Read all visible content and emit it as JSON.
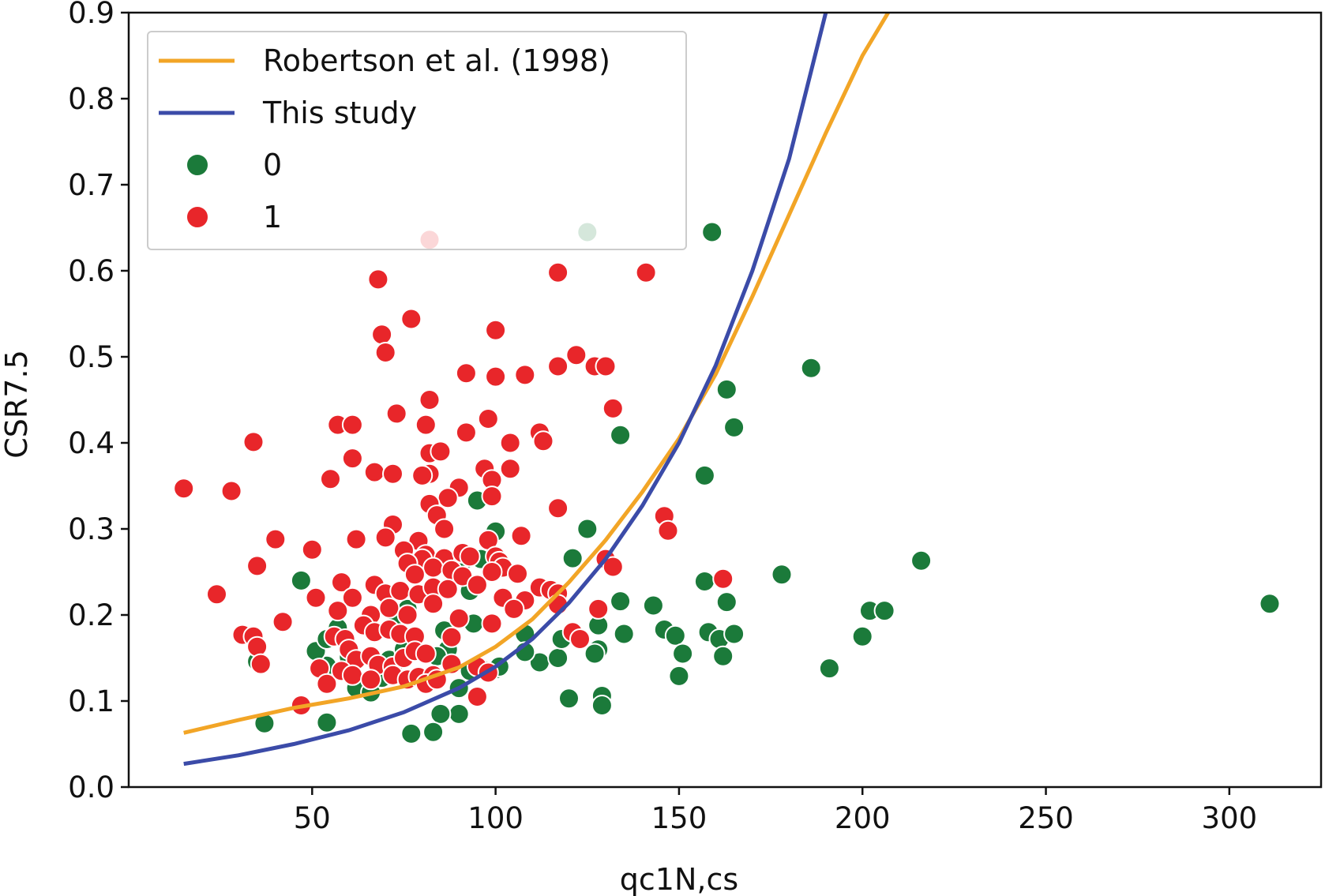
{
  "chart_data": {
    "type": "scatter",
    "title": "",
    "xlabel": "qc1N,cs",
    "ylabel": "CSR7.5",
    "xlim": [
      0,
      325
    ],
    "ylim": [
      0,
      0.9
    ],
    "xticks": [
      50,
      100,
      150,
      200,
      250,
      300
    ],
    "yticks": [
      0.0,
      0.1,
      0.2,
      0.3,
      0.4,
      0.5,
      0.6,
      0.7,
      0.8,
      0.9
    ],
    "grid": false,
    "legend_position": "top-left",
    "curves": [
      {
        "name": "Robertson et al. (1998)",
        "color": "#F2A526",
        "x": [
          15,
          30,
          45,
          60,
          75,
          90,
          100,
          110,
          120,
          130,
          140,
          150,
          160,
          170,
          180,
          190,
          200,
          207
        ],
        "y": [
          0.063,
          0.078,
          0.092,
          0.103,
          0.117,
          0.139,
          0.163,
          0.195,
          0.238,
          0.287,
          0.343,
          0.405,
          0.48,
          0.57,
          0.665,
          0.76,
          0.85,
          0.9
        ]
      },
      {
        "name": "This study",
        "color": "#3B4BA8",
        "x": [
          15,
          30,
          45,
          60,
          75,
          90,
          100,
          110,
          120,
          130,
          140,
          150,
          160,
          170,
          180,
          190
        ],
        "y": [
          0.027,
          0.037,
          0.05,
          0.066,
          0.087,
          0.115,
          0.14,
          0.172,
          0.214,
          0.265,
          0.327,
          0.4,
          0.49,
          0.6,
          0.73,
          0.9
        ]
      }
    ],
    "series": [
      {
        "name": "0",
        "color": "#1B7A3A",
        "points": [
          [
            159,
            0.645
          ],
          [
            125,
            0.645
          ],
          [
            186,
            0.487
          ],
          [
            163,
            0.462
          ],
          [
            165,
            0.418
          ],
          [
            134,
            0.409
          ],
          [
            157,
            0.362
          ],
          [
            216,
            0.263
          ],
          [
            178,
            0.247
          ],
          [
            125,
            0.3
          ],
          [
            121,
            0.266
          ],
          [
            157,
            0.239
          ],
          [
            163,
            0.215
          ],
          [
            134,
            0.216
          ],
          [
            143,
            0.211
          ],
          [
            311,
            0.213
          ],
          [
            202,
            0.205
          ],
          [
            206,
            0.205
          ],
          [
            200,
            0.175
          ],
          [
            146,
            0.183
          ],
          [
            149,
            0.176
          ],
          [
            158,
            0.18
          ],
          [
            161,
            0.172
          ],
          [
            165,
            0.178
          ],
          [
            135,
            0.178
          ],
          [
            128,
            0.188
          ],
          [
            128,
            0.16
          ],
          [
            127,
            0.155
          ],
          [
            151,
            0.155
          ],
          [
            162,
            0.152
          ],
          [
            191,
            0.138
          ],
          [
            150,
            0.129
          ],
          [
            120,
            0.103
          ],
          [
            129,
            0.106
          ],
          [
            129,
            0.095
          ],
          [
            112,
            0.145
          ],
          [
            117,
            0.15
          ],
          [
            118,
            0.172
          ],
          [
            108,
            0.178
          ],
          [
            108,
            0.157
          ],
          [
            100,
            0.137
          ],
          [
            101,
            0.14
          ],
          [
            96,
            0.138
          ],
          [
            93,
            0.135
          ],
          [
            90,
            0.115
          ],
          [
            87,
            0.16
          ],
          [
            86,
            0.182
          ],
          [
            84,
            0.152
          ],
          [
            90,
            0.085
          ],
          [
            85,
            0.085
          ],
          [
            83,
            0.064
          ],
          [
            77,
            0.062
          ],
          [
            47,
            0.24
          ],
          [
            35,
            0.146
          ],
          [
            37,
            0.074
          ],
          [
            54,
            0.075
          ],
          [
            54,
            0.141
          ],
          [
            51,
            0.158
          ],
          [
            54,
            0.172
          ],
          [
            57,
            0.185
          ],
          [
            60,
            0.151
          ],
          [
            62,
            0.115
          ],
          [
            66,
            0.11
          ],
          [
            69,
            0.127
          ],
          [
            71,
            0.148
          ],
          [
            73,
            0.19
          ],
          [
            75,
            0.16
          ],
          [
            95,
            0.333
          ],
          [
            100,
            0.297
          ],
          [
            96,
            0.265
          ],
          [
            92,
            0.265
          ],
          [
            93,
            0.228
          ],
          [
            76,
            0.207
          ],
          [
            94,
            0.19
          ]
        ]
      },
      {
        "name": "1",
        "color": "#E8262A",
        "points": [
          [
            82,
            0.636
          ],
          [
            68,
            0.59
          ],
          [
            117,
            0.598
          ],
          [
            141,
            0.598
          ],
          [
            77,
            0.544
          ],
          [
            100,
            0.531
          ],
          [
            69,
            0.526
          ],
          [
            70,
            0.505
          ],
          [
            122,
            0.502
          ],
          [
            92,
            0.481
          ],
          [
            100,
            0.477
          ],
          [
            108,
            0.479
          ],
          [
            117,
            0.489
          ],
          [
            127,
            0.489
          ],
          [
            130,
            0.489
          ],
          [
            82,
            0.45
          ],
          [
            132,
            0.44
          ],
          [
            73,
            0.434
          ],
          [
            98,
            0.428
          ],
          [
            57,
            0.421
          ],
          [
            61,
            0.421
          ],
          [
            81,
            0.421
          ],
          [
            92,
            0.412
          ],
          [
            112,
            0.412
          ],
          [
            113,
            0.402
          ],
          [
            104,
            0.4
          ],
          [
            34,
            0.401
          ],
          [
            82,
            0.388
          ],
          [
            85,
            0.39
          ],
          [
            61,
            0.382
          ],
          [
            67,
            0.366
          ],
          [
            72,
            0.364
          ],
          [
            82,
            0.364
          ],
          [
            80,
            0.362
          ],
          [
            97,
            0.37
          ],
          [
            104,
            0.37
          ],
          [
            99,
            0.357
          ],
          [
            55,
            0.358
          ],
          [
            15,
            0.347
          ],
          [
            28,
            0.344
          ],
          [
            90,
            0.348
          ],
          [
            99,
            0.338
          ],
          [
            87,
            0.336
          ],
          [
            82,
            0.329
          ],
          [
            84,
            0.316
          ],
          [
            117,
            0.324
          ],
          [
            86,
            0.3
          ],
          [
            146,
            0.315
          ],
          [
            147,
            0.298
          ],
          [
            107,
            0.292
          ],
          [
            72,
            0.305
          ],
          [
            70,
            0.29
          ],
          [
            79,
            0.286
          ],
          [
            40,
            0.288
          ],
          [
            62,
            0.288
          ],
          [
            50,
            0.276
          ],
          [
            35,
            0.257
          ],
          [
            98,
            0.287
          ],
          [
            75,
            0.275
          ],
          [
            81,
            0.27
          ],
          [
            86,
            0.266
          ],
          [
            91,
            0.272
          ],
          [
            93,
            0.268
          ],
          [
            100,
            0.268
          ],
          [
            101,
            0.262
          ],
          [
            102,
            0.255
          ],
          [
            99,
            0.25
          ],
          [
            80,
            0.265
          ],
          [
            76,
            0.26
          ],
          [
            83,
            0.255
          ],
          [
            88,
            0.252
          ],
          [
            78,
            0.247
          ],
          [
            130,
            0.265
          ],
          [
            132,
            0.256
          ],
          [
            91,
            0.245
          ],
          [
            95,
            0.235
          ],
          [
            106,
            0.248
          ],
          [
            162,
            0.242
          ],
          [
            58,
            0.238
          ],
          [
            67,
            0.235
          ],
          [
            70,
            0.225
          ],
          [
            74,
            0.228
          ],
          [
            79,
            0.224
          ],
          [
            83,
            0.232
          ],
          [
            87,
            0.23
          ],
          [
            83,
            0.213
          ],
          [
            112,
            0.232
          ],
          [
            115,
            0.229
          ],
          [
            117,
            0.225
          ],
          [
            102,
            0.22
          ],
          [
            108,
            0.217
          ],
          [
            117,
            0.212
          ],
          [
            24,
            0.224
          ],
          [
            51,
            0.22
          ],
          [
            61,
            0.22
          ],
          [
            57,
            0.205
          ],
          [
            66,
            0.2
          ],
          [
            71,
            0.208
          ],
          [
            76,
            0.2
          ],
          [
            105,
            0.207
          ],
          [
            128,
            0.207
          ],
          [
            42,
            0.192
          ],
          [
            64,
            0.188
          ],
          [
            67,
            0.18
          ],
          [
            71,
            0.183
          ],
          [
            74,
            0.178
          ],
          [
            78,
            0.175
          ],
          [
            99,
            0.19
          ],
          [
            90,
            0.196
          ],
          [
            121,
            0.18
          ],
          [
            123,
            0.172
          ],
          [
            31,
            0.177
          ],
          [
            34,
            0.175
          ],
          [
            35,
            0.163
          ],
          [
            36,
            0.143
          ],
          [
            56,
            0.175
          ],
          [
            59,
            0.172
          ],
          [
            60,
            0.16
          ],
          [
            62,
            0.148
          ],
          [
            66,
            0.152
          ],
          [
            68,
            0.142
          ],
          [
            72,
            0.14
          ],
          [
            75,
            0.15
          ],
          [
            78,
            0.158
          ],
          [
            81,
            0.155
          ],
          [
            88,
            0.174
          ],
          [
            52,
            0.138
          ],
          [
            54,
            0.12
          ],
          [
            58,
            0.135
          ],
          [
            61,
            0.13
          ],
          [
            66,
            0.125
          ],
          [
            72,
            0.13
          ],
          [
            76,
            0.125
          ],
          [
            79,
            0.128
          ],
          [
            83,
            0.13
          ],
          [
            88,
            0.143
          ],
          [
            95,
            0.14
          ],
          [
            98,
            0.133
          ],
          [
            47,
            0.095
          ],
          [
            95,
            0.105
          ],
          [
            81,
            0.12
          ],
          [
            84,
            0.125
          ]
        ]
      }
    ]
  }
}
